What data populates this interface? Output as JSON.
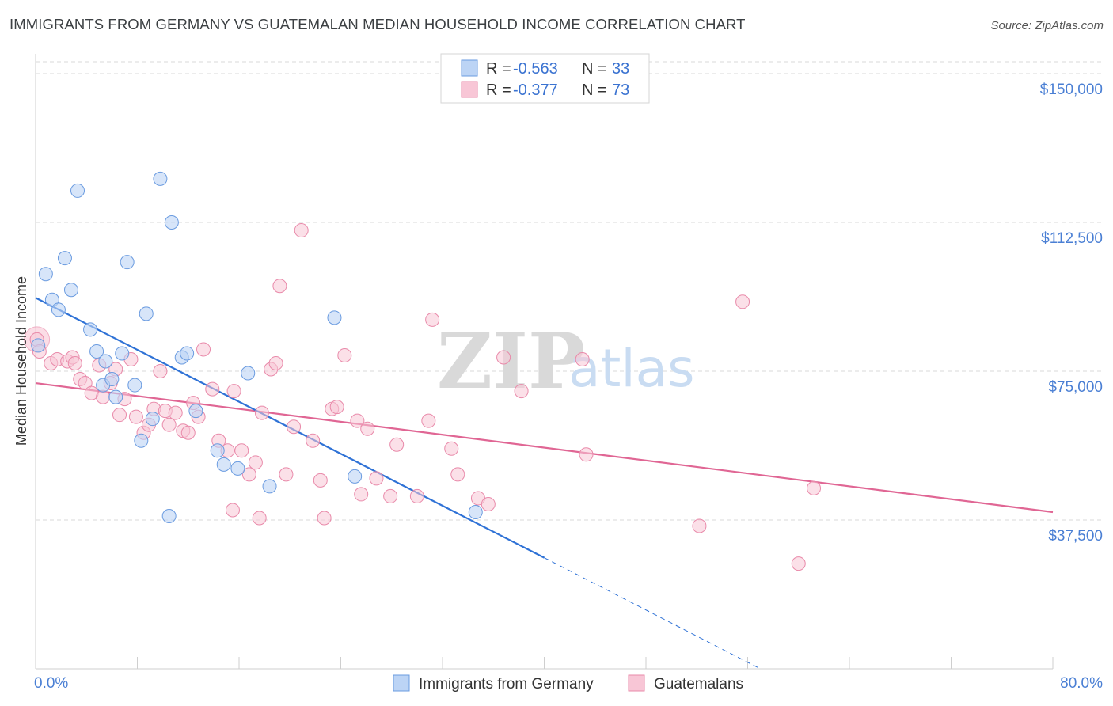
{
  "title": "IMMIGRANTS FROM GERMANY VS GUATEMALAN MEDIAN HOUSEHOLD INCOME CORRELATION CHART",
  "source": "Source: ZipAtlas.com",
  "watermark": {
    "zip": "ZIP",
    "atlas": "atlas"
  },
  "colors": {
    "blue_fill": "#bcd4f5",
    "blue_stroke": "#6a9be0",
    "blue_line": "#2f72d6",
    "pink_fill": "#f8c6d6",
    "pink_stroke": "#e98aaa",
    "pink_line": "#e06694",
    "axis_label": "#4a7fd4",
    "grid": "#d9d9d9"
  },
  "legend": {
    "rows": [
      {
        "r_label": "R = ",
        "r_value": "-0.563",
        "n_label": "N = ",
        "n_value": "33"
      },
      {
        "r_label": "R = ",
        "r_value": "-0.377",
        "n_label": "N = ",
        "n_value": "73"
      }
    ]
  },
  "bottom_legend": [
    "Immigrants from Germany",
    "Guatemalans"
  ],
  "chart_data": {
    "type": "scatter",
    "xlabel": "",
    "ylabel": "Median Household Income",
    "xlim": [
      0,
      80
    ],
    "ylim": [
      0,
      153000
    ],
    "x_tick_labels": [
      "0.0%",
      "80.0%"
    ],
    "y_ticks": [
      {
        "value": 37500,
        "label": "$37,500"
      },
      {
        "value": 75000,
        "label": "$75,000"
      },
      {
        "value": 112500,
        "label": "$112,500"
      },
      {
        "value": 150000,
        "label": "$150,000"
      }
    ],
    "grid": true,
    "legend_placement": "top-center",
    "series": [
      {
        "name": "Immigrants from Germany",
        "r": -0.563,
        "n": 33,
        "trend": {
          "x": [
            0,
            40
          ],
          "y": [
            93500,
            28000
          ]
        },
        "trend_dashed": {
          "x": [
            40,
            57
          ],
          "y": [
            28000,
            0
          ]
        },
        "points": [
          [
            0.2,
            81500
          ],
          [
            0.8,
            99500
          ],
          [
            1.3,
            93000
          ],
          [
            1.8,
            90500
          ],
          [
            2.3,
            103500
          ],
          [
            2.8,
            95500
          ],
          [
            3.3,
            120500
          ],
          [
            4.3,
            85500
          ],
          [
            4.8,
            80000
          ],
          [
            5.5,
            77500
          ],
          [
            5.3,
            71500
          ],
          [
            6.0,
            73000
          ],
          [
            6.3,
            68500
          ],
          [
            6.8,
            79500
          ],
          [
            7.2,
            102500
          ],
          [
            7.8,
            71500
          ],
          [
            8.3,
            57500
          ],
          [
            8.7,
            89500
          ],
          [
            9.2,
            63000
          ],
          [
            9.8,
            123500
          ],
          [
            10.5,
            38500
          ],
          [
            10.7,
            112500
          ],
          [
            11.5,
            78500
          ],
          [
            11.9,
            79500
          ],
          [
            12.6,
            65000
          ],
          [
            14.3,
            55000
          ],
          [
            14.8,
            51500
          ],
          [
            15.9,
            50500
          ],
          [
            16.7,
            74500
          ],
          [
            18.4,
            46000
          ],
          [
            23.5,
            88500
          ],
          [
            25.1,
            48500
          ],
          [
            34.6,
            39500
          ]
        ]
      },
      {
        "name": "Guatemalans",
        "r": -0.377,
        "n": 73,
        "trend": {
          "x": [
            0,
            80
          ],
          "y": [
            72000,
            39500
          ]
        },
        "points": [
          [
            0.1,
            83000
          ],
          [
            0.3,
            80000
          ],
          [
            1.2,
            77000
          ],
          [
            1.7,
            78000
          ],
          [
            2.5,
            77500
          ],
          [
            2.9,
            78500
          ],
          [
            3.1,
            77000
          ],
          [
            3.5,
            73000
          ],
          [
            3.9,
            72000
          ],
          [
            4.4,
            69500
          ],
          [
            5.0,
            76500
          ],
          [
            5.3,
            68500
          ],
          [
            5.9,
            72000
          ],
          [
            6.3,
            75500
          ],
          [
            6.6,
            64000
          ],
          [
            7.0,
            68000
          ],
          [
            7.5,
            78000
          ],
          [
            7.9,
            63500
          ],
          [
            8.5,
            59500
          ],
          [
            8.9,
            61500
          ],
          [
            9.3,
            65500
          ],
          [
            9.8,
            75000
          ],
          [
            10.2,
            65000
          ],
          [
            10.5,
            61500
          ],
          [
            11.0,
            64500
          ],
          [
            11.6,
            60000
          ],
          [
            12.0,
            59500
          ],
          [
            12.4,
            67000
          ],
          [
            12.8,
            63500
          ],
          [
            13.2,
            80500
          ],
          [
            13.9,
            70500
          ],
          [
            14.4,
            57500
          ],
          [
            15.1,
            55000
          ],
          [
            15.5,
            40000
          ],
          [
            15.6,
            70000
          ],
          [
            16.2,
            55000
          ],
          [
            16.8,
            49000
          ],
          [
            17.3,
            52000
          ],
          [
            17.6,
            38000
          ],
          [
            17.8,
            64500
          ],
          [
            18.5,
            75500
          ],
          [
            18.9,
            77000
          ],
          [
            19.2,
            96500
          ],
          [
            19.7,
            49000
          ],
          [
            20.3,
            61000
          ],
          [
            20.9,
            110500
          ],
          [
            21.8,
            57500
          ],
          [
            22.4,
            47500
          ],
          [
            22.7,
            38000
          ],
          [
            23.3,
            65500
          ],
          [
            23.7,
            66000
          ],
          [
            24.3,
            79000
          ],
          [
            25.3,
            62500
          ],
          [
            25.6,
            44000
          ],
          [
            26.1,
            60500
          ],
          [
            26.8,
            48000
          ],
          [
            27.9,
            43500
          ],
          [
            28.4,
            56500
          ],
          [
            30.0,
            43500
          ],
          [
            30.9,
            62500
          ],
          [
            31.2,
            88000
          ],
          [
            32.7,
            55500
          ],
          [
            33.2,
            49000
          ],
          [
            34.8,
            43000
          ],
          [
            35.6,
            41500
          ],
          [
            36.8,
            78500
          ],
          [
            38.2,
            70000
          ],
          [
            43.0,
            78000
          ],
          [
            43.3,
            54000
          ],
          [
            52.2,
            36000
          ],
          [
            55.6,
            92500
          ],
          [
            60.0,
            26500
          ],
          [
            61.2,
            45500
          ]
        ]
      }
    ]
  }
}
